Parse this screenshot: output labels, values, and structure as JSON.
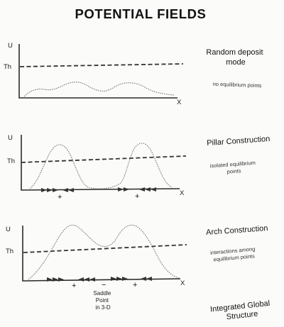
{
  "title": "POTENTIAL FIELDS",
  "panels": [
    {
      "axis_y_label": "U",
      "axis_x_label": "X",
      "threshold_label": "Th",
      "caption_title": "Random deposit mode",
      "caption_title_lines": [
        "Random deposit",
        "mode"
      ],
      "caption_note": "no equilibrium points",
      "caption_note_lines": [
        "no equilibrium points"
      ],
      "marker_labels": []
    },
    {
      "axis_y_label": "U",
      "axis_x_label": "X",
      "threshold_label": "Th",
      "caption_title": "Pillar Construction",
      "caption_title_lines": [
        "Pillar Construction"
      ],
      "caption_note": "isolated equilibrium points",
      "caption_note_lines": [
        "isolated equilibrium",
        "points"
      ],
      "marker_labels": [
        "+",
        "+"
      ]
    },
    {
      "axis_y_label": "U",
      "axis_x_label": "X",
      "threshold_label": "Th",
      "caption_title": "Arch Construction",
      "caption_title_lines": [
        "Arch Construction"
      ],
      "caption_note": "interactions among equilibrium points",
      "caption_note_lines": [
        "interactions among",
        "equilibrium points"
      ],
      "marker_labels": [
        "+",
        "−",
        "+"
      ],
      "annotation": "Saddle Point in 3-D",
      "annotation_lines": [
        "Saddle",
        "Point",
        "in 3-D"
      ]
    }
  ],
  "footer": {
    "caption": "Integrated Global Structure",
    "caption_lines": [
      "Integrated Global",
      "Structure"
    ]
  },
  "colors": {
    "curve": "#777777",
    "threshold": "#333333",
    "axis": "#2a2a2a"
  }
}
